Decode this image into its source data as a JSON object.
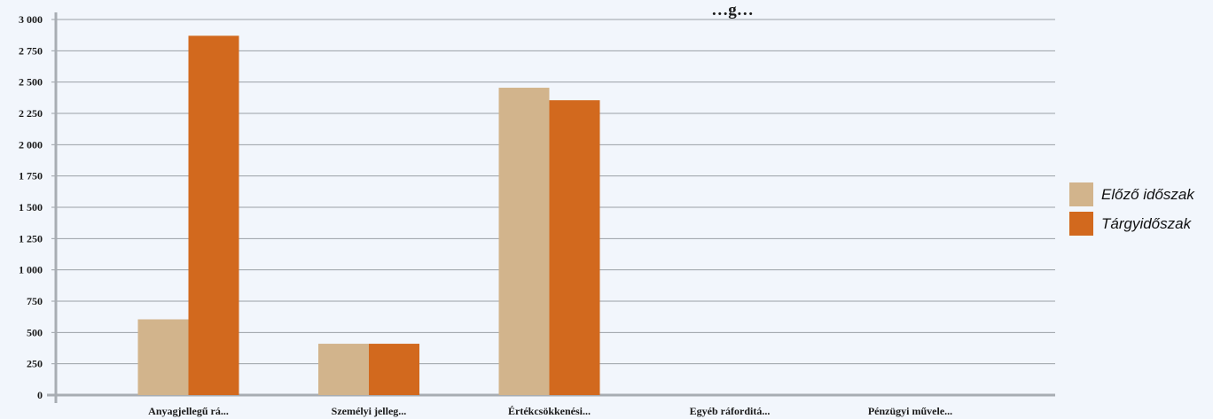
{
  "chart_data": {
    "type": "bar",
    "title": "…g…",
    "categories": [
      "Anyagjellegű rá...",
      "Személyi jelleg...",
      "Értékcsökkenési...",
      "Egyéb ráforditá...",
      "Pénzügyi művele..."
    ],
    "series": [
      {
        "name": "Előző időszak",
        "color": "#d2b48c",
        "values": [
          605,
          410,
          2455,
          0,
          0
        ]
      },
      {
        "name": "Tárgyidőszak",
        "color": "#d2691e",
        "values": [
          2870,
          410,
          2355,
          0,
          0
        ]
      }
    ],
    "ylim": [
      0,
      3000
    ],
    "yticks": [
      "0",
      "250",
      "500",
      "750",
      "1 000",
      "1 250",
      "1 500",
      "1 750",
      "2 000",
      "2 250",
      "2 500",
      "2 750",
      "3 000"
    ],
    "xlabel": "",
    "ylabel": "",
    "grid": true,
    "legend_position": "right"
  }
}
